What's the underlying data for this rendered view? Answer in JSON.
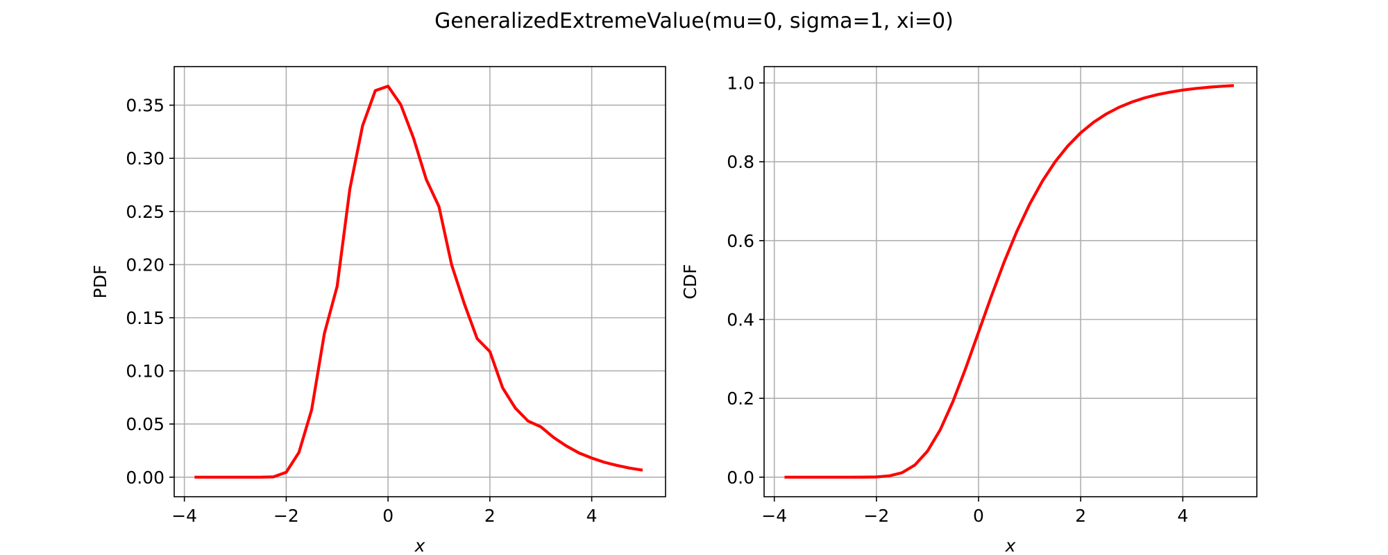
{
  "figure": {
    "title": "GeneralizedExtremeValue(mu=0, sigma=1, xi=0)"
  },
  "colors": {
    "curve": "#ff0000",
    "grid": "#b0b0b0",
    "axes": "#000000",
    "background": "#ffffff"
  },
  "chart_data": [
    {
      "type": "line",
      "name": "pdf-panel",
      "xlabel": "x",
      "ylabel": "PDF",
      "xlim": [
        -4.2,
        5.45
      ],
      "ylim": [
        -0.0184,
        0.3863
      ],
      "x_ticks": [
        -4,
        -2,
        0,
        2,
        4
      ],
      "x_tick_labels": [
        "−4",
        "−2",
        "0",
        "2",
        "4"
      ],
      "y_ticks": [
        0.0,
        0.05,
        0.1,
        0.15,
        0.2,
        0.25,
        0.3,
        0.35
      ],
      "y_tick_labels": [
        "0.00",
        "0.05",
        "0.10",
        "0.15",
        "0.20",
        "0.25",
        "0.30",
        "0.35"
      ],
      "grid": true,
      "series": [
        {
          "color": "#ff0000",
          "x": [
            -3.8,
            -3.5,
            -3.0,
            -2.5,
            -2.25,
            -2.0,
            -1.75,
            -1.5,
            -1.25,
            -1.0,
            -0.75,
            -0.5,
            -0.25,
            0.0,
            0.25,
            0.5,
            0.75,
            1.0,
            1.25,
            1.5,
            1.75,
            2.0,
            2.25,
            2.5,
            2.75,
            3.0,
            3.25,
            3.5,
            3.75,
            4.0,
            4.25,
            4.5,
            4.75,
            5.0
          ],
          "y": [
            0.0,
            0.0,
            0.0,
            0.0,
            0.0003,
            0.0046,
            0.0233,
            0.0635,
            0.1353,
            0.1795,
            0.2712,
            0.3307,
            0.3637,
            0.3679,
            0.3505,
            0.3191,
            0.2802,
            0.2546,
            0.1996,
            0.1629,
            0.1303,
            0.1182,
            0.0841,
            0.065,
            0.0528,
            0.0474,
            0.0374,
            0.0294,
            0.0228,
            0.018,
            0.014,
            0.011,
            0.0085,
            0.0066
          ]
        }
      ]
    },
    {
      "type": "line",
      "name": "cdf-panel",
      "xlabel": "x",
      "ylabel": "CDF",
      "xlim": [
        -4.2,
        5.45
      ],
      "ylim": [
        -0.0496,
        1.0414
      ],
      "x_ticks": [
        -4,
        -2,
        0,
        2,
        4
      ],
      "x_tick_labels": [
        "−4",
        "−2",
        "0",
        "2",
        "4"
      ],
      "y_ticks": [
        0.0,
        0.2,
        0.4,
        0.6,
        0.8,
        1.0
      ],
      "y_tick_labels": [
        "0.0",
        "0.2",
        "0.4",
        "0.6",
        "0.8",
        "1.0"
      ],
      "grid": true,
      "series": [
        {
          "color": "#ff0000",
          "x": [
            -3.8,
            -3.5,
            -3.0,
            -2.5,
            -2.25,
            -2.0,
            -1.75,
            -1.5,
            -1.25,
            -1.0,
            -0.75,
            -0.5,
            -0.25,
            0.0,
            0.25,
            0.5,
            0.75,
            1.0,
            1.25,
            1.5,
            1.75,
            2.0,
            2.25,
            2.5,
            2.75,
            3.0,
            3.25,
            3.5,
            3.75,
            4.0,
            4.25,
            4.5,
            4.75,
            5.0
          ],
          "y": [
            0.0,
            0.0,
            0.0,
            0.0,
            0.0001,
            0.0006,
            0.0032,
            0.0113,
            0.0305,
            0.066,
            0.1203,
            0.1923,
            0.2769,
            0.3679,
            0.4589,
            0.5452,
            0.6235,
            0.6922,
            0.7509,
            0.8,
            0.8404,
            0.8734,
            0.9,
            0.9212,
            0.9381,
            0.9514,
            0.962,
            0.9703,
            0.9767,
            0.9819,
            0.9858,
            0.989,
            0.9914,
            0.9933
          ]
        }
      ]
    }
  ]
}
